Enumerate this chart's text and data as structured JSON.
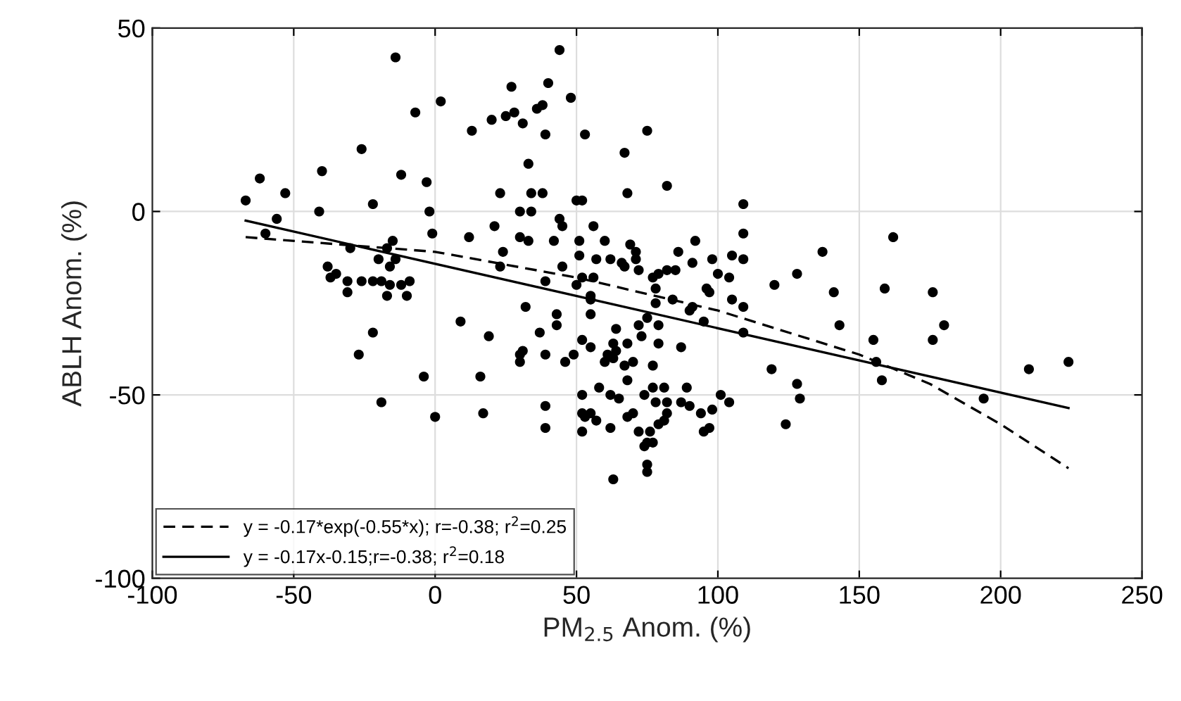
{
  "chart_data": {
    "type": "scatter",
    "xlabel": "PM$_{2.5}$ Anom. (%)",
    "ylabel": "ABLH Anom. (%)",
    "xlim": [
      -100,
      250
    ],
    "xticks": [
      -100,
      -50,
      0,
      50,
      100,
      150,
      200,
      250
    ],
    "ylim": [
      -100,
      50
    ],
    "yticks": [
      -100,
      -50,
      0,
      50
    ],
    "grid": true,
    "legend": "bottom left",
    "series": [
      {
        "color": "#000000",
        "marker": "circle",
        "x": [
          -14,
          2,
          -7,
          -26,
          -40,
          -12,
          -3,
          -62,
          -67,
          -53,
          -41,
          -22,
          -2,
          -1,
          -56,
          -60,
          -15,
          -30,
          -17,
          -20,
          -14,
          -16,
          -38,
          -35,
          -37,
          -31,
          -26,
          -22,
          -19,
          -16,
          -12,
          -9,
          -31,
          -17,
          -10,
          -22,
          -27,
          -4,
          -19,
          0,
          9,
          19,
          16,
          17,
          30,
          30,
          32,
          12,
          21,
          23,
          24,
          23,
          30,
          30,
          33,
          33,
          34,
          13,
          20,
          25,
          28,
          31,
          27,
          44,
          40,
          48,
          36,
          38,
          39,
          53,
          75,
          67,
          38,
          50,
          52,
          68,
          82,
          109,
          34,
          44,
          45,
          56,
          42,
          51,
          60,
          69,
          71,
          71,
          72,
          51,
          57,
          62,
          66,
          67,
          86,
          92,
          91,
          98,
          105,
          109,
          109,
          137,
          45,
          52,
          50,
          56,
          39,
          77,
          79,
          82,
          85,
          78,
          100,
          104,
          96,
          97,
          120,
          128,
          55,
          55,
          55,
          84,
          78,
          105,
          109,
          43,
          43,
          37,
          64,
          72,
          75,
          79,
          90,
          91,
          95,
          109,
          73,
          52,
          55,
          63,
          64,
          68,
          79,
          87,
          31,
          39,
          46,
          49,
          61,
          63,
          60,
          67,
          70,
          77,
          68,
          119,
          128,
          129,
          52,
          58,
          62,
          65,
          74,
          77,
          81,
          78,
          82,
          89,
          87,
          90,
          94,
          98,
          101,
          104,
          52,
          53,
          57,
          55,
          68,
          70,
          82,
          81,
          79,
          62,
          52,
          39,
          39,
          95,
          97,
          124,
          72,
          76,
          75,
          77,
          74,
          75,
          63,
          75,
          162,
          141,
          159,
          176,
          143,
          180,
          155,
          176,
          156,
          158,
          194,
          210,
          224
        ],
        "values": [
          42,
          30,
          27,
          17,
          11,
          10,
          8,
          9,
          3,
          5,
          0,
          2,
          0,
          -6,
          -2,
          -6,
          -8,
          -10,
          -10,
          -13,
          -13,
          -15,
          -15,
          -17,
          -18,
          -19,
          -19,
          -19,
          -19,
          -20,
          -20,
          -19,
          -22,
          -23,
          -23,
          -33,
          -39,
          -45,
          -52,
          -56,
          -30,
          -34,
          -45,
          -55,
          -39,
          -41,
          -26,
          -7,
          -4,
          5,
          -11,
          -15,
          0,
          -7,
          -8,
          13,
          5,
          22,
          25,
          26,
          27,
          24,
          34,
          44,
          35,
          31,
          28,
          29,
          21,
          21,
          22,
          16,
          5,
          3,
          3,
          5,
          7,
          2,
          0,
          -2,
          -4,
          -4,
          -8,
          -8,
          -8,
          -9,
          -11,
          -13,
          -16,
          -12,
          -13,
          -13,
          -14,
          -15,
          -11,
          -8,
          -14,
          -13,
          -12,
          -6,
          -13,
          -11,
          -15,
          -18,
          -20,
          -18,
          -19,
          -18,
          -17,
          -16,
          -16,
          -21,
          -17,
          -18,
          -21,
          -22,
          -20,
          -17,
          -23,
          -24,
          -28,
          -24,
          -25,
          -24,
          -26,
          -28,
          -31,
          -33,
          -32,
          -31,
          -29,
          -31,
          -27,
          -26,
          -30,
          -33,
          -34,
          -35,
          -37,
          -36,
          -38,
          -36,
          -36,
          -37,
          -38,
          -39,
          -41,
          -39,
          -39,
          -40,
          -41,
          -42,
          -41,
          -42,
          -46,
          -43,
          -47,
          -51,
          -50,
          -48,
          -50,
          -51,
          -50,
          -48,
          -48,
          -52,
          -52,
          -48,
          -52,
          -53,
          -55,
          -54,
          -50,
          -52,
          -55,
          -56,
          -57,
          -55,
          -56,
          -55,
          -55,
          -57,
          -58,
          -59,
          -60,
          -53,
          -59,
          -60,
          -59,
          -58,
          -60,
          -60,
          -63,
          -63,
          -64,
          -69,
          -73,
          -71,
          -7,
          -22,
          -21,
          -22,
          -31,
          -31,
          -35,
          -35,
          -41,
          -46,
          -51,
          -43,
          -41
        ]
      },
      {
        "type": "line",
        "name": "y = -0.17*exp(-0.55*x); r=-0.38; r$^{2}$=0.25",
        "color": "#000000",
        "line_style": "dashed",
        "x": [
          -67,
          0,
          50,
          100,
          150,
          175,
          200,
          224
        ],
        "values": [
          -7,
          -11,
          -18,
          -27,
          -39,
          -47,
          -58,
          -70
        ]
      },
      {
        "type": "line",
        "name": "y = -0.17x-0.15;r=-0.38; r$^{2}$=0.18",
        "color": "#000000",
        "line_style": "solid",
        "x": [
          -67,
          224
        ],
        "values": [
          -2.5,
          -53.6
        ]
      }
    ]
  }
}
